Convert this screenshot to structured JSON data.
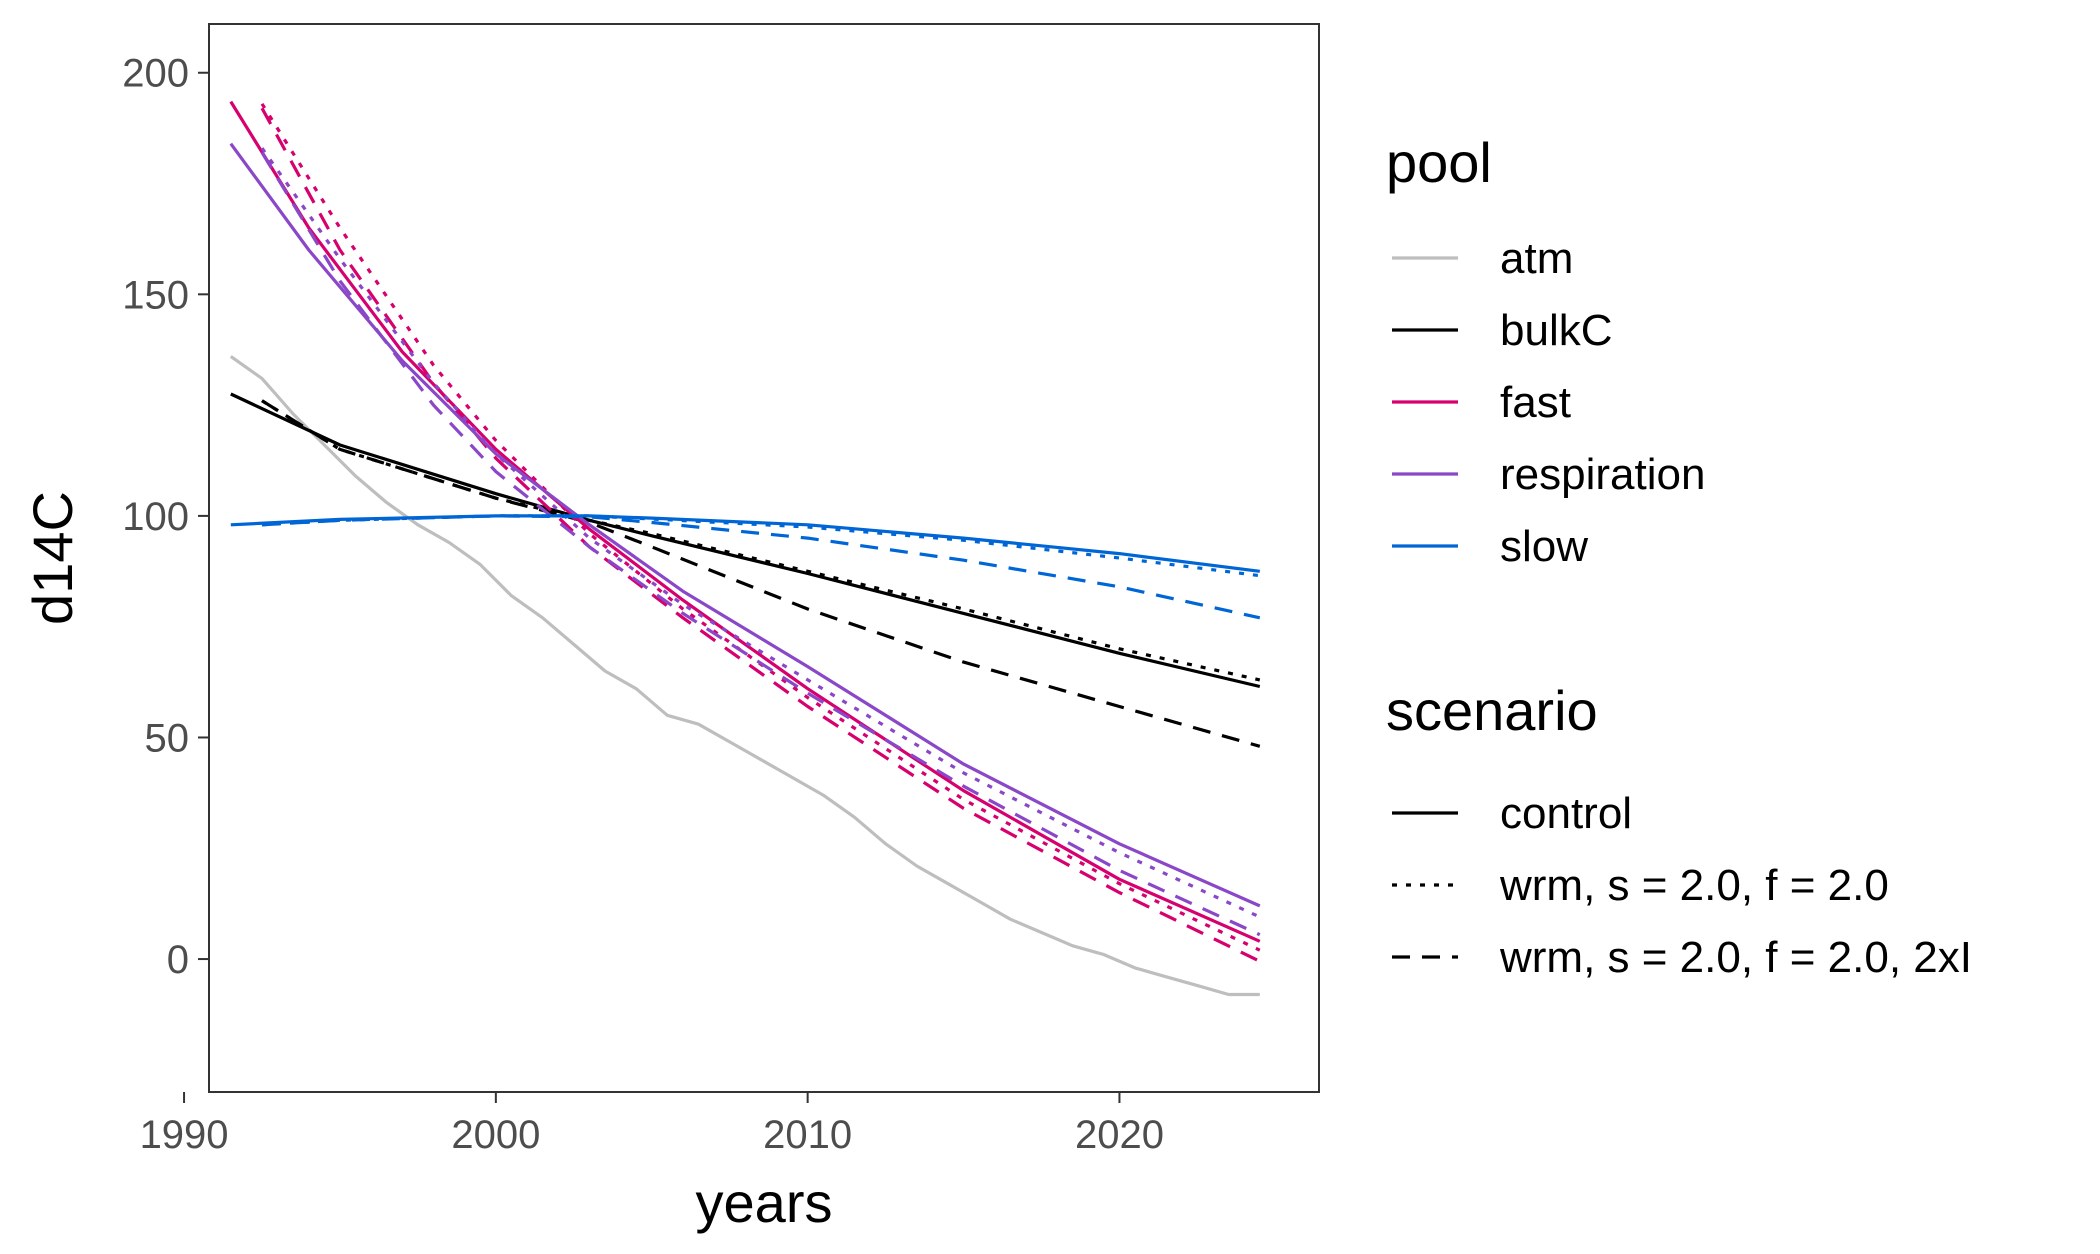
{
  "chart_data": {
    "type": "line",
    "xlabel": "years",
    "ylabel": "d14C",
    "xlim": [
      1990.8,
      2026.4
    ],
    "ylim": [
      -30,
      211
    ],
    "x_ticks": [
      1990,
      2000,
      2010,
      2020
    ],
    "y_ticks": [
      0,
      50,
      100,
      150,
      200
    ],
    "grid": false,
    "legend_position": "right",
    "legends": {
      "pool": {
        "title": "pool",
        "entries": [
          {
            "label": "atm",
            "color": "#bebebe"
          },
          {
            "label": "bulkC",
            "color": "#000000"
          },
          {
            "label": "fast",
            "color": "#d6006e"
          },
          {
            "label": "respiration",
            "color": "#8a47c8"
          },
          {
            "label": "slow",
            "color": "#0066d6"
          }
        ]
      },
      "scenario": {
        "title": "scenario",
        "entries": [
          {
            "label": "control",
            "dash": "solid"
          },
          {
            "label": "wrm, s = 2.0, f = 2.0",
            "dash": "dotted"
          },
          {
            "label": "wrm, s = 2.0, f = 2.0, 2xI",
            "dash": "dashed"
          }
        ]
      }
    },
    "series": [
      {
        "pool": "atm",
        "scenario": "control",
        "color": "#bebebe",
        "dash": "solid",
        "x": [
          1991.5,
          1992.5,
          1993.5,
          1994.5,
          1995.5,
          1996.5,
          1997.5,
          1998.5,
          1999.5,
          2000.5,
          2001.5,
          2002.5,
          2003.5,
          2004.5,
          2005.5,
          2006.5,
          2007.5,
          2008.5,
          2009.5,
          2010.5,
          2011.5,
          2012.5,
          2013.5,
          2014.5,
          2015.5,
          2016.5,
          2017.5,
          2018.5,
          2019.5,
          2020.5,
          2021.5,
          2022.5,
          2023.5,
          2024.5
        ],
        "y": [
          136,
          131,
          123,
          116,
          109,
          103,
          98,
          94,
          89,
          82,
          77,
          71,
          65,
          61,
          55,
          53,
          49,
          45,
          41,
          37,
          32,
          26,
          21,
          17,
          13,
          9,
          6,
          3,
          1,
          -2,
          -4,
          -6,
          -8,
          -8
        ]
      },
      {
        "pool": "bulkC",
        "scenario": "control",
        "color": "#000000",
        "dash": "solid",
        "x": [
          1991.5,
          1995,
          2000,
          2003,
          2005,
          2010,
          2015,
          2020,
          2024.5
        ],
        "y": [
          127.5,
          116,
          105,
          99,
          95.5,
          87,
          78,
          69,
          61.5
        ]
      },
      {
        "pool": "bulkC",
        "scenario": "wrm, s = 2.0, f = 2.0",
        "color": "#000000",
        "dash": "dotted",
        "x": [
          1992.5,
          1995,
          2000,
          2003,
          2005,
          2010,
          2015,
          2020,
          2024.5
        ],
        "y": [
          126,
          115,
          104,
          99,
          96,
          87.5,
          79,
          70,
          63
        ]
      },
      {
        "pool": "bulkC",
        "scenario": "wrm, s = 2.0, f = 2.0, 2xI",
        "color": "#000000",
        "dash": "dashed",
        "x": [
          1992.5,
          1995,
          2000,
          2003,
          2005,
          2010,
          2015,
          2020,
          2024.5
        ],
        "y": [
          126,
          115,
          104,
          98.5,
          93,
          79,
          67,
          57,
          48
        ]
      },
      {
        "pool": "fast",
        "scenario": "control",
        "color": "#d6006e",
        "dash": "solid",
        "x": [
          1991.5,
          1994,
          1997,
          2000,
          2003,
          2006,
          2010,
          2015,
          2020,
          2024.5
        ],
        "y": [
          193.5,
          165,
          137,
          115,
          97,
          81,
          61,
          38,
          18,
          4
        ]
      },
      {
        "pool": "fast",
        "scenario": "wrm, s = 2.0, f = 2.0",
        "color": "#d6006e",
        "dash": "dotted",
        "x": [
          1992.5,
          1995,
          1998,
          2000,
          2003,
          2006,
          2010,
          2015,
          2020,
          2024.5
        ],
        "y": [
          193,
          165,
          134,
          117,
          96,
          79,
          59,
          36,
          17,
          2
        ]
      },
      {
        "pool": "fast",
        "scenario": "wrm, s = 2.0, f = 2.0, 2xI",
        "color": "#d6006e",
        "dash": "dashed",
        "x": [
          1992.5,
          1995,
          1998,
          2000,
          2003,
          2006,
          2010,
          2015,
          2020,
          2024.5
        ],
        "y": [
          192,
          160,
          130,
          113,
          93,
          77,
          57,
          34,
          15,
          -0.5
        ]
      },
      {
        "pool": "respiration",
        "scenario": "control",
        "color": "#8a47c8",
        "dash": "solid",
        "x": [
          1991.5,
          1994,
          1997,
          2000,
          2003,
          2006,
          2010,
          2015,
          2020,
          2024.5
        ],
        "y": [
          184,
          160,
          135,
          114,
          98,
          83,
          66,
          44,
          26,
          12
        ]
      },
      {
        "pool": "respiration",
        "scenario": "wrm, s = 2.0, f = 2.0",
        "color": "#8a47c8",
        "dash": "dotted",
        "x": [
          1992.5,
          1995,
          1998,
          2000,
          2003,
          2006,
          2010,
          2015,
          2020,
          2024.5
        ],
        "y": [
          183,
          158,
          130,
          114,
          95,
          80,
          63,
          42,
          24,
          9.5
        ]
      },
      {
        "pool": "respiration",
        "scenario": "wrm, s = 2.0, f = 2.0, 2xI",
        "color": "#8a47c8",
        "dash": "dashed",
        "x": [
          1992.5,
          1995,
          1998,
          2000,
          2003,
          2006,
          2010,
          2015,
          2020,
          2024.5
        ],
        "y": [
          182,
          153,
          125,
          110,
          93,
          78,
          60,
          39,
          20,
          5.5
        ]
      },
      {
        "pool": "slow",
        "scenario": "control",
        "color": "#0066d6",
        "dash": "solid",
        "x": [
          1991.5,
          1995,
          2000,
          2003,
          2005,
          2010,
          2015,
          2020,
          2024.5
        ],
        "y": [
          98,
          99.2,
          100,
          100,
          99.5,
          98,
          95,
          91.5,
          87.5
        ]
      },
      {
        "pool": "slow",
        "scenario": "wrm, s = 2.0, f = 2.0",
        "color": "#0066d6",
        "dash": "dotted",
        "x": [
          1992.5,
          1995,
          2000,
          2003,
          2005,
          2010,
          2015,
          2020,
          2024.5
        ],
        "y": [
          98,
          99,
          100,
          100,
          99.3,
          97.5,
          94.5,
          90.5,
          86.5
        ]
      },
      {
        "pool": "slow",
        "scenario": "wrm, s = 2.0, f = 2.0, 2xI",
        "color": "#0066d6",
        "dash": "dashed",
        "x": [
          1992.5,
          1995,
          2000,
          2003,
          2005,
          2010,
          2015,
          2020,
          2024.5
        ],
        "y": [
          98,
          99,
          100,
          99.8,
          98.5,
          95,
          90,
          84,
          77
        ]
      }
    ]
  }
}
